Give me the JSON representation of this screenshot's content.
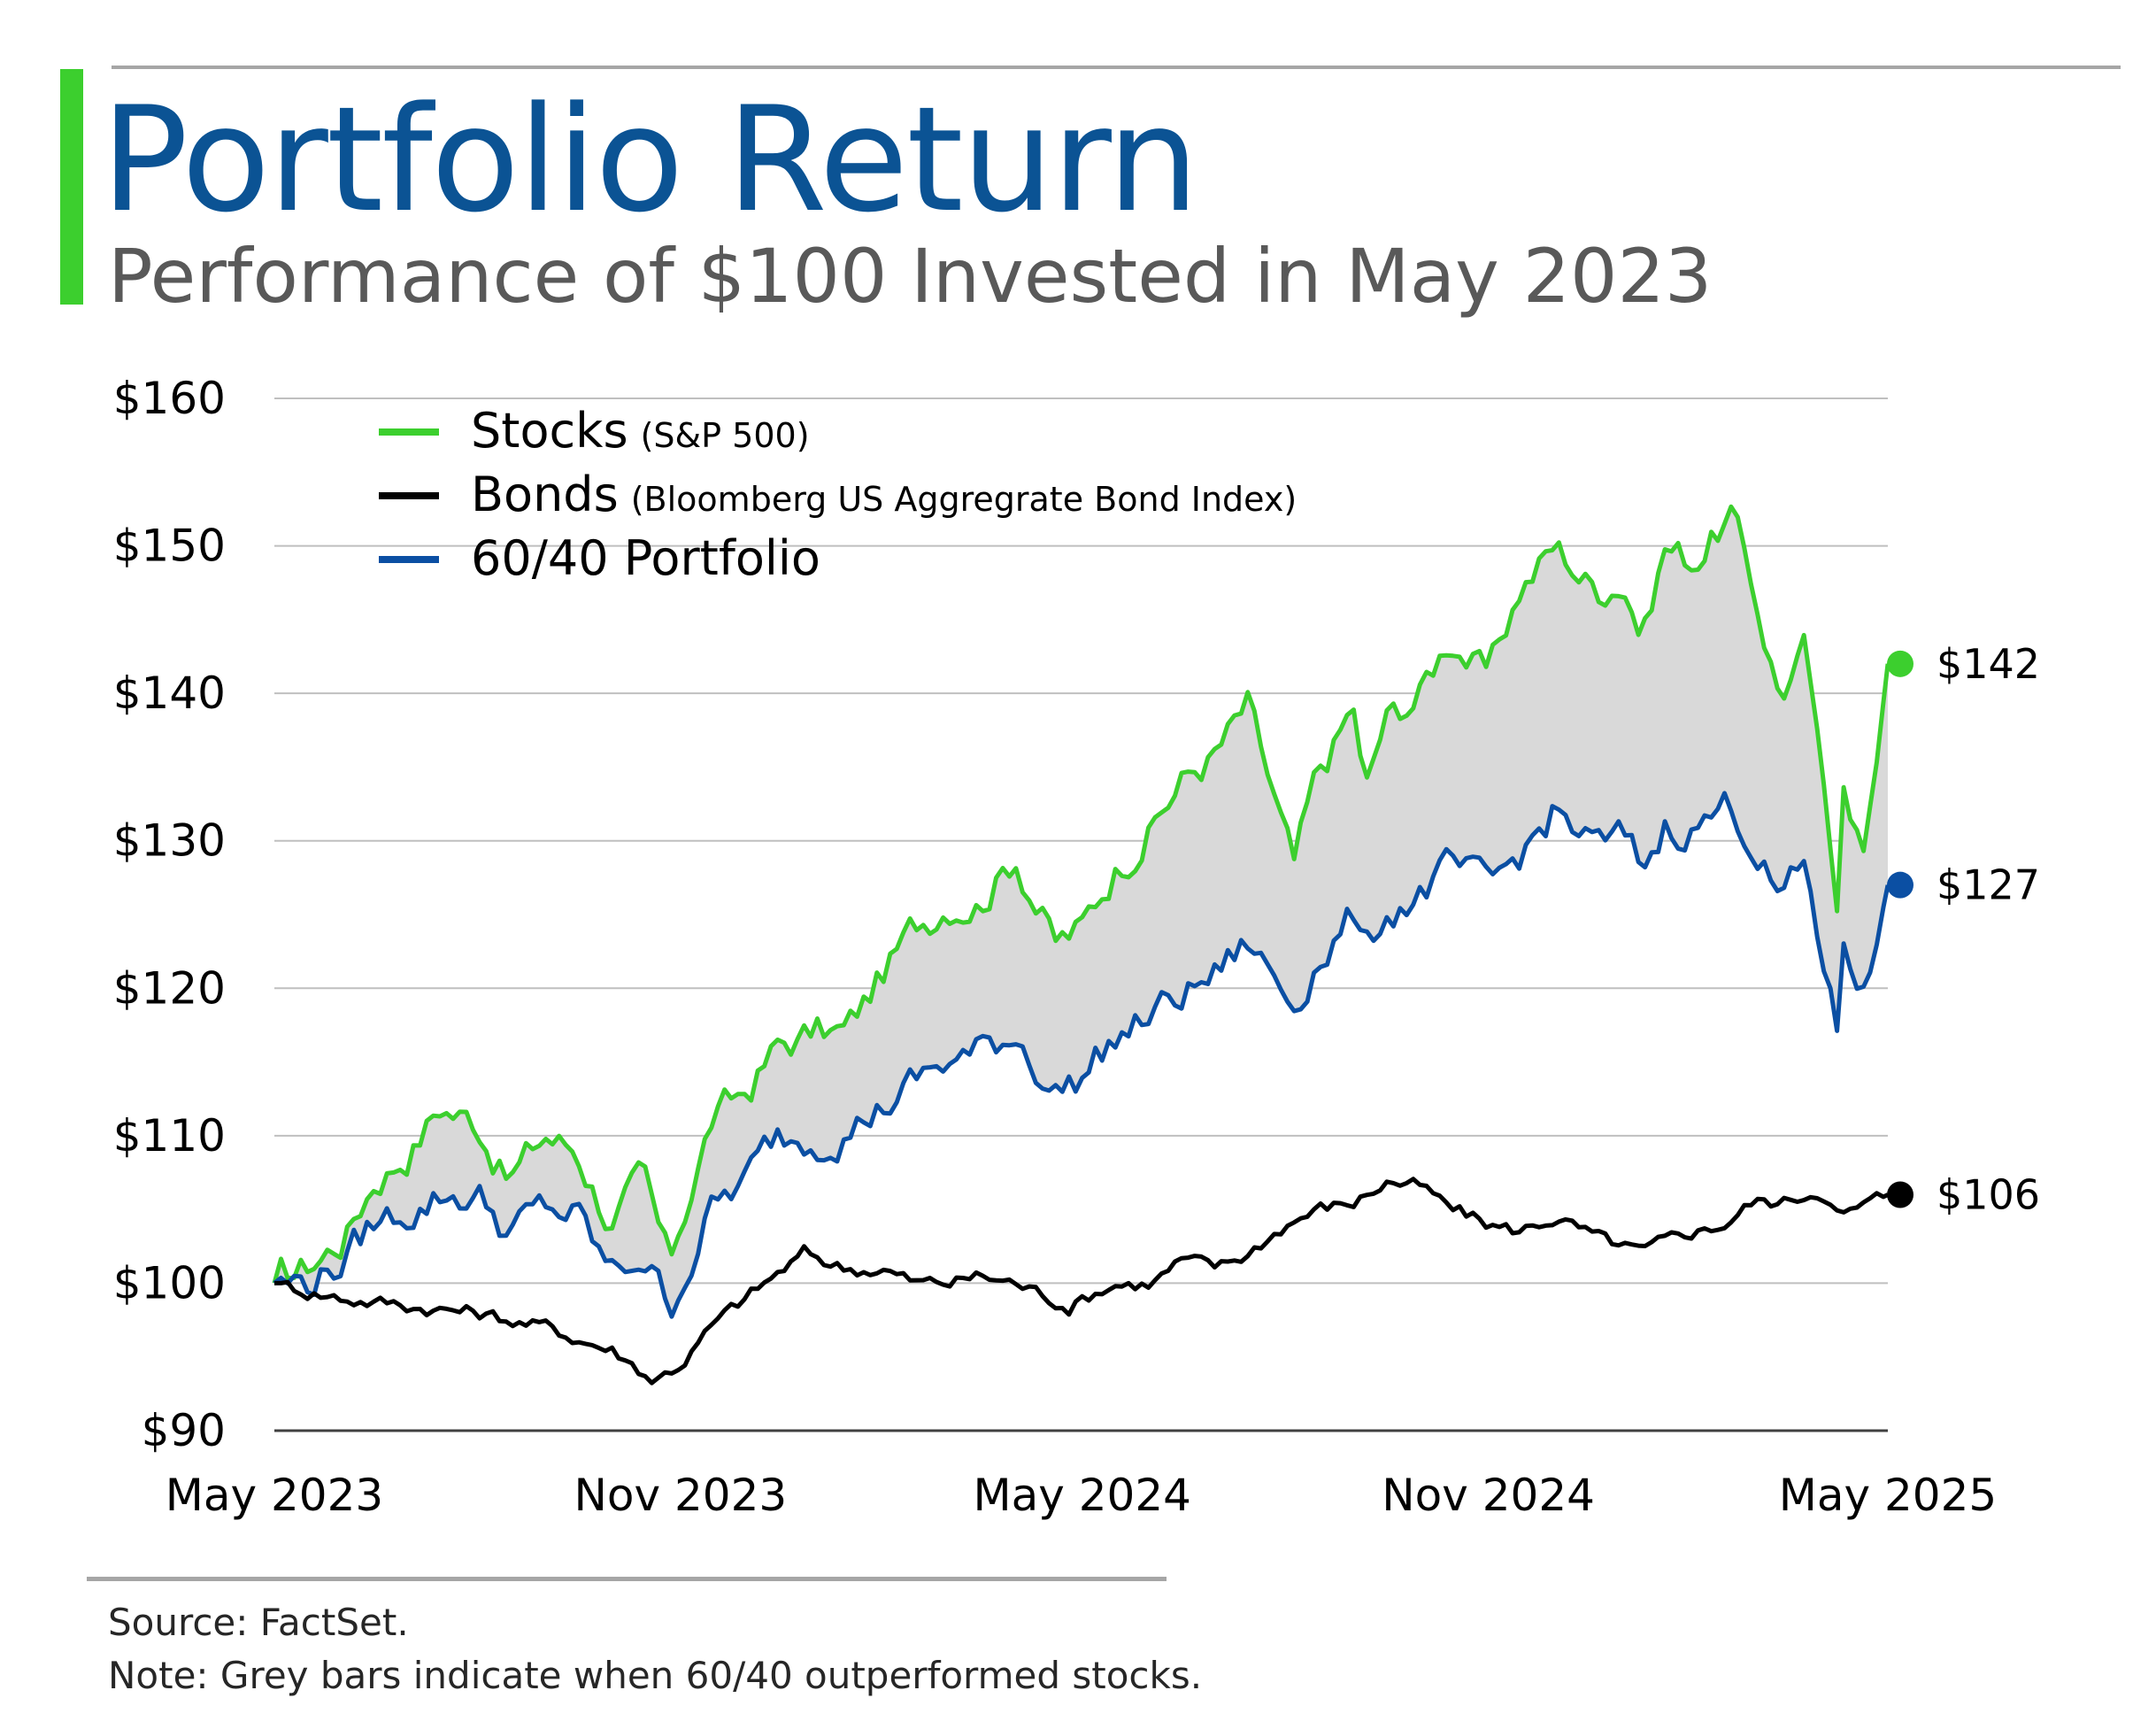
{
  "header": {
    "title": "Portfolio Return",
    "subtitle": "Performance of $100 Invested in May 2023"
  },
  "footer": {
    "source": "Source: FactSet.",
    "note": "Note: Grey bars indicate when 60/40 outperformed stocks."
  },
  "colors": {
    "accent": "#3ccf2e",
    "title": "#0b5394",
    "stocks": "#3ccf2e",
    "bonds": "#000000",
    "portfolio": "#0b4fa3",
    "shade": "#d9d9d9",
    "grid": "#bfbfbf"
  },
  "chart_data": {
    "type": "line",
    "title": "Portfolio Return",
    "subtitle": "Performance of $100 Invested in May 2023",
    "ylim": [
      90,
      160
    ],
    "y_ticks": [
      90,
      100,
      110,
      120,
      130,
      140,
      150,
      160
    ],
    "y_tick_labels": [
      "$90",
      "$100",
      "$110",
      "$120",
      "$130",
      "$140",
      "$150",
      "$160"
    ],
    "x_ticks": [
      "2023-05-01",
      "2023-11-01",
      "2024-05-01",
      "2024-11-01",
      "2025-05-01"
    ],
    "x_tick_labels": [
      "May 2023",
      "Nov 2023",
      "May 2024",
      "Nov 2024",
      "May 2025"
    ],
    "xlim": [
      "2023-05-01",
      "2025-05-01"
    ],
    "grid": true,
    "legend_position": "top-left",
    "shaded_between": [
      "Stocks",
      "60/40 Portfolio"
    ],
    "legend": [
      {
        "series": "Stocks",
        "label": "Stocks",
        "detail": "(S&P 500)"
      },
      {
        "series": "Bonds",
        "label": "Bonds",
        "detail": "(Bloomberg US Aggregrate Bond Index)"
      },
      {
        "series": "60/40 Portfolio",
        "label": "60/40 Portfolio",
        "detail": ""
      }
    ],
    "end_labels": [
      {
        "series": "Stocks",
        "value": 142,
        "label": "$142"
      },
      {
        "series": "60/40 Portfolio",
        "value": 127,
        "label": "$127"
      },
      {
        "series": "Bonds",
        "value": 106,
        "label": "$106"
      }
    ],
    "series": [
      {
        "name": "Stocks",
        "points": [
          [
            "2023-05-01",
            100
          ],
          [
            "2023-05-15",
            101
          ],
          [
            "2023-06-01",
            103
          ],
          [
            "2023-06-15",
            107
          ],
          [
            "2023-07-01",
            109
          ],
          [
            "2023-07-15",
            112
          ],
          [
            "2023-08-01",
            111
          ],
          [
            "2023-08-15",
            107
          ],
          [
            "2023-09-01",
            110
          ],
          [
            "2023-09-15",
            109
          ],
          [
            "2023-10-01",
            104
          ],
          [
            "2023-10-15",
            107
          ],
          [
            "2023-10-27",
            101
          ],
          [
            "2023-11-01",
            104
          ],
          [
            "2023-11-15",
            111
          ],
          [
            "2023-12-01",
            113
          ],
          [
            "2023-12-15",
            116
          ],
          [
            "2024-01-01",
            117
          ],
          [
            "2024-01-15",
            117
          ],
          [
            "2024-02-01",
            121
          ],
          [
            "2024-02-15",
            124
          ],
          [
            "2024-03-01",
            126
          ],
          [
            "2024-03-15",
            126
          ],
          [
            "2024-04-01",
            129
          ],
          [
            "2024-04-19",
            123
          ],
          [
            "2024-05-01",
            124
          ],
          [
            "2024-05-15",
            128
          ],
          [
            "2024-06-01",
            131
          ],
          [
            "2024-06-15",
            134
          ],
          [
            "2024-07-01",
            136
          ],
          [
            "2024-07-15",
            139
          ],
          [
            "2024-08-05",
            128
          ],
          [
            "2024-08-15",
            134
          ],
          [
            "2024-09-01",
            139
          ],
          [
            "2024-09-06",
            133
          ],
          [
            "2024-09-15",
            138
          ],
          [
            "2024-10-01",
            140
          ],
          [
            "2024-10-15",
            144
          ],
          [
            "2024-11-01",
            141
          ],
          [
            "2024-11-15",
            147
          ],
          [
            "2024-12-01",
            150
          ],
          [
            "2024-12-20",
            147
          ],
          [
            "2025-01-01",
            148
          ],
          [
            "2025-01-10",
            144
          ],
          [
            "2025-01-20",
            150
          ],
          [
            "2025-02-01",
            149
          ],
          [
            "2025-02-19",
            152
          ],
          [
            "2025-03-01",
            147
          ],
          [
            "2025-03-13",
            140
          ],
          [
            "2025-03-25",
            143
          ],
          [
            "2025-04-04",
            130
          ],
          [
            "2025-04-08",
            126
          ],
          [
            "2025-04-09",
            136
          ],
          [
            "2025-04-21",
            129
          ],
          [
            "2025-05-01",
            142
          ]
        ]
      },
      {
        "name": "Bonds",
        "points": [
          [
            "2023-05-01",
            100
          ],
          [
            "2023-06-01",
            99
          ],
          [
            "2023-07-01",
            98.5
          ],
          [
            "2023-08-01",
            98
          ],
          [
            "2023-09-01",
            97
          ],
          [
            "2023-10-01",
            95.5
          ],
          [
            "2023-10-20",
            93.5
          ],
          [
            "2023-11-01",
            94.5
          ],
          [
            "2023-11-15",
            97
          ],
          [
            "2023-12-01",
            99
          ],
          [
            "2023-12-27",
            102
          ],
          [
            "2024-01-15",
            101
          ],
          [
            "2024-02-01",
            101
          ],
          [
            "2024-02-15",
            100
          ],
          [
            "2024-03-01",
            100
          ],
          [
            "2024-03-15",
            100.5
          ],
          [
            "2024-04-01",
            100
          ],
          [
            "2024-04-25",
            98.5
          ],
          [
            "2024-05-15",
            100
          ],
          [
            "2024-06-01",
            100
          ],
          [
            "2024-06-15",
            101.5
          ],
          [
            "2024-07-01",
            101
          ],
          [
            "2024-07-15",
            102
          ],
          [
            "2024-08-01",
            104
          ],
          [
            "2024-08-15",
            105
          ],
          [
            "2024-09-01",
            105.5
          ],
          [
            "2024-09-17",
            107
          ],
          [
            "2024-10-01",
            106.5
          ],
          [
            "2024-10-15",
            105
          ],
          [
            "2024-11-01",
            104
          ],
          [
            "2024-11-15",
            103.5
          ],
          [
            "2024-12-01",
            104.5
          ],
          [
            "2024-12-20",
            103
          ],
          [
            "2025-01-10",
            102
          ],
          [
            "2025-02-01",
            103.5
          ],
          [
            "2025-02-15",
            104
          ],
          [
            "2025-03-01",
            105.5
          ],
          [
            "2025-03-15",
            105.5
          ],
          [
            "2025-04-01",
            106.5
          ],
          [
            "2025-04-10",
            104.5
          ],
          [
            "2025-05-01",
            106
          ]
        ]
      },
      {
        "name": "60/40 Portfolio",
        "points": [
          [
            "2023-05-01",
            100
          ],
          [
            "2023-05-15",
            100
          ],
          [
            "2023-06-01",
            101.5
          ],
          [
            "2023-06-15",
            104
          ],
          [
            "2023-07-01",
            105
          ],
          [
            "2023-07-15",
            106
          ],
          [
            "2023-08-01",
            106
          ],
          [
            "2023-08-15",
            103.5
          ],
          [
            "2023-09-01",
            105
          ],
          [
            "2023-09-15",
            104.5
          ],
          [
            "2023-10-01",
            100.5
          ],
          [
            "2023-10-15",
            102
          ],
          [
            "2023-10-27",
            98.5
          ],
          [
            "2023-11-01",
            100
          ],
          [
            "2023-11-15",
            105
          ],
          [
            "2023-12-01",
            107
          ],
          [
            "2023-12-15",
            110
          ],
          [
            "2024-01-01",
            110
          ],
          [
            "2024-01-15",
            110.5
          ],
          [
            "2024-02-01",
            112
          ],
          [
            "2024-02-15",
            113.5
          ],
          [
            "2024-03-01",
            115
          ],
          [
            "2024-03-15",
            115.5
          ],
          [
            "2024-04-01",
            117
          ],
          [
            "2024-04-19",
            113
          ],
          [
            "2024-05-01",
            114
          ],
          [
            "2024-05-15",
            116.5
          ],
          [
            "2024-06-01",
            118
          ],
          [
            "2024-06-15",
            119.5
          ],
          [
            "2024-07-01",
            121
          ],
          [
            "2024-07-15",
            123
          ],
          [
            "2024-08-05",
            119
          ],
          [
            "2024-08-15",
            122
          ],
          [
            "2024-09-01",
            125
          ],
          [
            "2024-09-06",
            122
          ],
          [
            "2024-09-15",
            125
          ],
          [
            "2024-10-01",
            126.5
          ],
          [
            "2024-10-15",
            128
          ],
          [
            "2024-11-01",
            126.5
          ],
          [
            "2024-11-15",
            129
          ],
          [
            "2024-12-01",
            132
          ],
          [
            "2024-12-20",
            129.5
          ],
          [
            "2025-01-01",
            130
          ],
          [
            "2025-01-10",
            128
          ],
          [
            "2025-01-20",
            131
          ],
          [
            "2025-02-01",
            131
          ],
          [
            "2025-02-19",
            132.5
          ],
          [
            "2025-03-01",
            130
          ],
          [
            "2025-03-13",
            126
          ],
          [
            "2025-03-25",
            128
          ],
          [
            "2025-04-04",
            120
          ],
          [
            "2025-04-08",
            117
          ],
          [
            "2025-04-09",
            124
          ],
          [
            "2025-04-21",
            119.5
          ],
          [
            "2025-05-01",
            127
          ]
        ]
      }
    ]
  }
}
